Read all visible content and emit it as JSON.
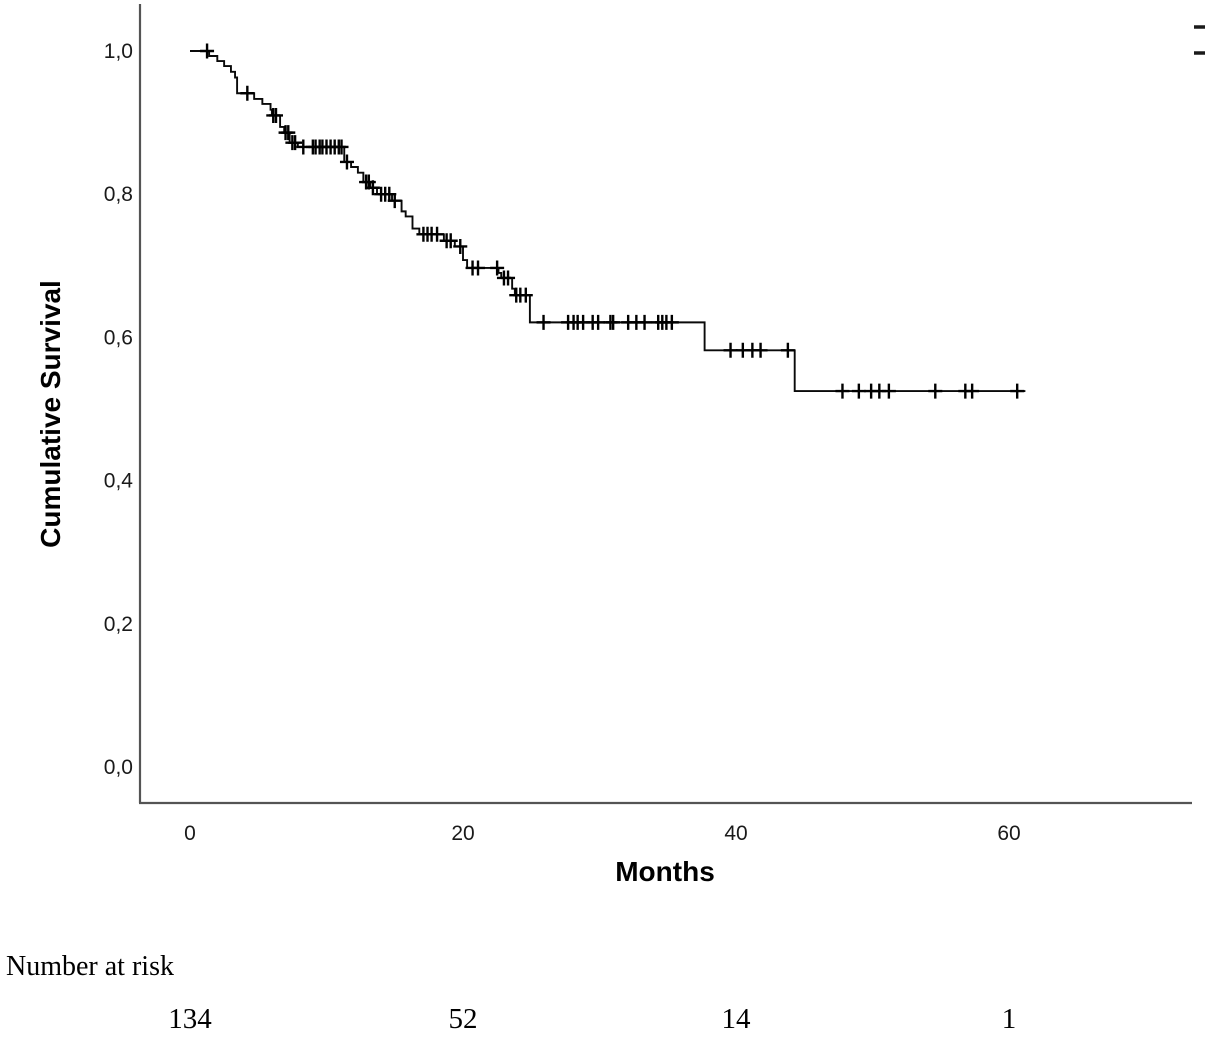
{
  "figure": {
    "background": "#ffffff",
    "y_axis_title": "Cumulative Survival",
    "x_axis_title": "Months",
    "risk_section_label": "Number at risk",
    "colors": {
      "curve": "#0a0a0a",
      "censor_mark": "#000000",
      "axis_line": "#545454",
      "text": "#000000",
      "background": "#ffffff"
    },
    "clipped_legend_dash_count": 2
  },
  "chart_data": {
    "type": "line",
    "subtype": "kaplan-meier-step",
    "title": "",
    "xlabel": "Months",
    "ylabel": "Cumulative Survival",
    "xlim": [
      -3.7,
      73.4
    ],
    "ylim": [
      -0.05,
      1.065
    ],
    "grid": false,
    "legend": "clipped at top-right edge (two dash fragments visible)",
    "x_ticks": [
      {
        "value": 0,
        "label": "0"
      },
      {
        "value": 20,
        "label": "20"
      },
      {
        "value": 40,
        "label": "40"
      },
      {
        "value": 60,
        "label": "60"
      }
    ],
    "y_ticks": [
      {
        "value": 1.0,
        "label": "1,0"
      },
      {
        "value": 0.8,
        "label": "0,8"
      },
      {
        "value": 0.6,
        "label": "0,6"
      },
      {
        "value": 0.4,
        "label": "0,4"
      },
      {
        "value": 0.2,
        "label": "0,2"
      },
      {
        "value": 0.0,
        "label": "0,0"
      }
    ],
    "series": [
      {
        "name": "Cumulative Survival",
        "style": "step-post",
        "color": "#0a0a0a",
        "steps_time_survival": [
          [
            0,
            1.0
          ],
          [
            1.4,
            0.993
          ],
          [
            2.0,
            0.986
          ],
          [
            2.5,
            0.979
          ],
          [
            3.0,
            0.971
          ],
          [
            3.3,
            0.963
          ],
          [
            3.45,
            0.941
          ],
          [
            4.7,
            0.933
          ],
          [
            5.3,
            0.926
          ],
          [
            5.9,
            0.918
          ],
          [
            6.0,
            0.91
          ],
          [
            6.6,
            0.894
          ],
          [
            6.9,
            0.886
          ],
          [
            7.3,
            0.872
          ],
          [
            7.9,
            0.866
          ],
          [
            11.3,
            0.845
          ],
          [
            11.8,
            0.838
          ],
          [
            12.3,
            0.83
          ],
          [
            12.7,
            0.817
          ],
          [
            13.2,
            0.809
          ],
          [
            13.7,
            0.8
          ],
          [
            14.8,
            0.791
          ],
          [
            15.5,
            0.776
          ],
          [
            15.8,
            0.769
          ],
          [
            16.3,
            0.752
          ],
          [
            16.8,
            0.744
          ],
          [
            18.6,
            0.735
          ],
          [
            19.4,
            0.727
          ],
          [
            20.0,
            0.708
          ],
          [
            20.3,
            0.697
          ],
          [
            22.6,
            0.69
          ],
          [
            22.8,
            0.683
          ],
          [
            23.6,
            0.668
          ],
          [
            23.8,
            0.659
          ],
          [
            24.9,
            0.621
          ],
          [
            37.7,
            0.582
          ],
          [
            44.3,
            0.525
          ]
        ],
        "curve_end_month": 61.2,
        "censor_times": [
          1.25,
          4.2,
          6.1,
          6.3,
          7.0,
          7.2,
          7.5,
          7.7,
          8.3,
          9.0,
          9.2,
          9.5,
          9.7,
          10.0,
          10.3,
          10.6,
          10.9,
          11.1,
          11.5,
          12.9,
          13.1,
          13.4,
          14.0,
          14.3,
          14.6,
          15.0,
          17.1,
          17.4,
          17.7,
          18.1,
          18.8,
          19.1,
          19.8,
          20.7,
          21.1,
          22.5,
          23.0,
          23.3,
          23.9,
          24.2,
          24.6,
          25.9,
          27.7,
          28.1,
          28.4,
          28.8,
          29.5,
          29.9,
          30.8,
          31.0,
          32.1,
          32.7,
          33.3,
          34.3,
          34.6,
          34.9,
          35.3,
          39.6,
          40.5,
          41.2,
          41.8,
          43.8,
          47.8,
          49.0,
          49.9,
          50.5,
          51.2,
          54.6,
          56.8,
          57.3,
          60.6
        ]
      }
    ],
    "number_at_risk": {
      "label": "Number at risk",
      "times": [
        0,
        20,
        40,
        60
      ],
      "counts": [
        "134",
        "52",
        "14",
        "1"
      ]
    }
  }
}
